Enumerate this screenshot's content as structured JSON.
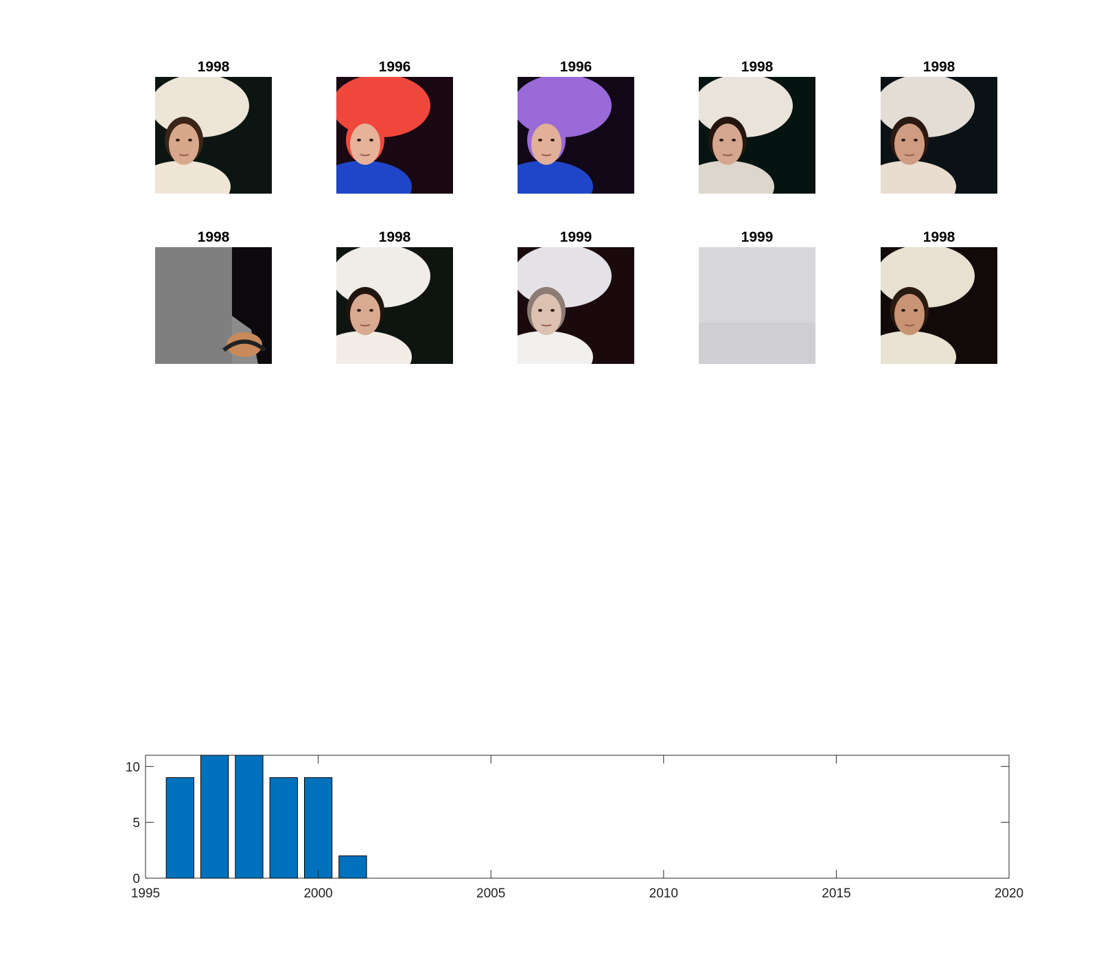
{
  "thumbnails": [
    {
      "year": "1998",
      "desc": "woman with white feather headpiece",
      "colors": {
        "bg": "#0c1512",
        "hat": "#ece5d8",
        "skin": "#d8a88c",
        "cloth": "#efe6d6",
        "hair": "#3a2518"
      }
    },
    {
      "year": "1996",
      "desc": "model with red voluminous hair, blue top",
      "colors": {
        "bg": "#1a0812",
        "hat": "#f0473c",
        "skin": "#e6b39a",
        "cloth": "#1f46c9",
        "hair": "#f0473c"
      }
    },
    {
      "year": "1996",
      "desc": "model with purple voluminous hair, blue top",
      "colors": {
        "bg": "#120818",
        "hat": "#9a6ad8",
        "skin": "#e2b098",
        "cloth": "#1f46c9",
        "hair": "#9a6ad8"
      }
    },
    {
      "year": "1998",
      "desc": "woman with white tulle headpiece",
      "colors": {
        "bg": "#051410",
        "hat": "#e9e3da",
        "skin": "#d4a78e",
        "cloth": "#dcd6cc",
        "hair": "#24160e"
      }
    },
    {
      "year": "1998",
      "desc": "woman with white veil headpiece",
      "colors": {
        "bg": "#0b1216",
        "hat": "#e3ddd6",
        "skin": "#cf9c82",
        "cloth": "#e8ddd0",
        "hair": "#2b1a12"
      }
    },
    {
      "year": "1998",
      "desc": "grey floor with shoe",
      "colors": {
        "bg": "#8c8c8c",
        "hat": "#0c0a0c",
        "skin": "#c88a5a",
        "cloth": "#7f7f7f",
        "hair": "#111111"
      }
    },
    {
      "year": "1998",
      "desc": "woman with white veil",
      "colors": {
        "bg": "#0e1410",
        "hat": "#f0ede8",
        "skin": "#d8ab90",
        "cloth": "#f1ede6",
        "hair": "#20140e"
      }
    },
    {
      "year": "1999",
      "desc": "model in white hat and veil",
      "colors": {
        "bg": "#1a0a0e",
        "hat": "#e4e2e6",
        "skin": "#dcc0b0",
        "cloth": "#f2f0ee",
        "hair": "#8c7c74"
      }
    },
    {
      "year": "1999",
      "desc": "pale grey wall",
      "colors": {
        "bg": "#cfcfd3",
        "hat": "#d7d7db",
        "skin": "#d2d2d6",
        "cloth": "#c9c9cd",
        "hair": "#bfbfc3"
      }
    },
    {
      "year": "1998",
      "desc": "woman in white headpiece and shawl",
      "colors": {
        "bg": "#120a08",
        "hat": "#e8e0d0",
        "skin": "#c89474",
        "cloth": "#eae2d2",
        "hair": "#2a1a10"
      }
    }
  ],
  "chart_data": {
    "type": "bar",
    "title": "",
    "xlabel": "",
    "ylabel": "",
    "x": [
      1996,
      1997,
      1998,
      1999,
      2000,
      2001
    ],
    "values": [
      9,
      11,
      11,
      9,
      9,
      2
    ],
    "xlim": [
      1995,
      2020
    ],
    "ylim": [
      0,
      11
    ],
    "xticks": [
      "1995",
      "2000",
      "2005",
      "2010",
      "2015",
      "2020"
    ],
    "yticks": [
      "0",
      "5",
      "10"
    ],
    "bar_color": "#0072bd",
    "grid": false
  }
}
